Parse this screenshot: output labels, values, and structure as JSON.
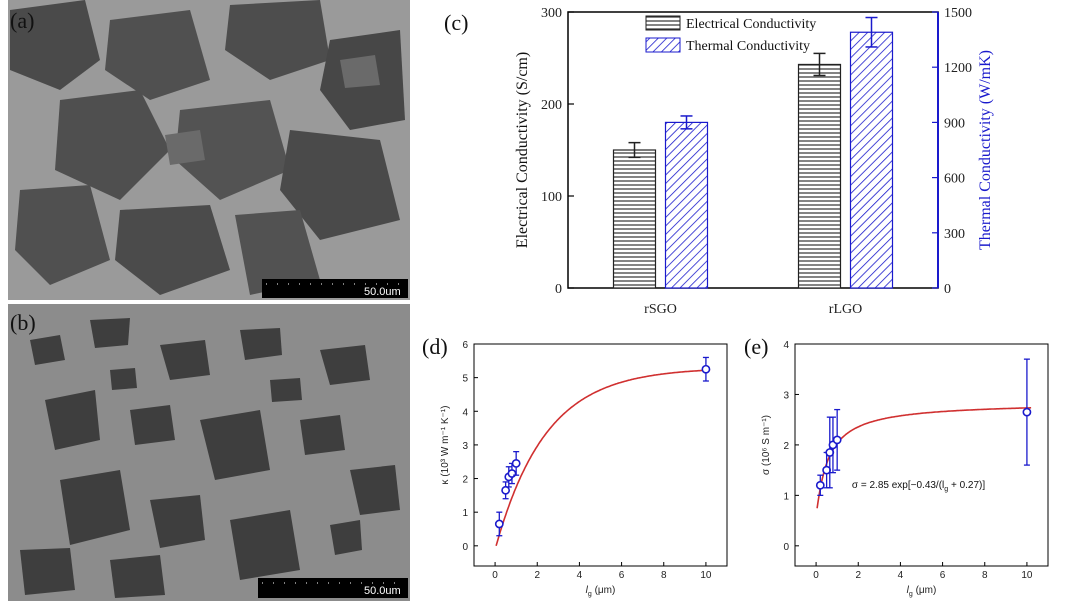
{
  "panels": {
    "a": {
      "label": "(a)",
      "scale_bar": "50.0um"
    },
    "b": {
      "label": "(b)",
      "scale_bar": "50.0um"
    },
    "c": {
      "label": "(c)"
    },
    "d": {
      "label": "(d)"
    },
    "e": {
      "label": "(e)"
    }
  },
  "colors": {
    "electrical": "#555555",
    "thermal": "#1a1acc",
    "fit": "#d03030",
    "points": "#1a1acc"
  },
  "chart_data": [
    {
      "id": "c",
      "type": "bar",
      "categories": [
        "rSGO",
        "rLGO"
      ],
      "series": [
        {
          "name": "Electrical Conductivity",
          "axis": "left",
          "values": [
            150,
            243
          ],
          "errors": [
            8,
            12
          ],
          "pattern": "horizontal-stripes"
        },
        {
          "name": "Thermal Conductivity",
          "axis": "right",
          "values": [
            900,
            1390
          ],
          "errors": [
            35,
            80
          ],
          "pattern": "diagonal-hatch"
        }
      ],
      "ylabel": "Electrical Conductivity (S/cm)",
      "ylabel_right": "Thermal Conductivity (W/mK)",
      "ylim": [
        0,
        300
      ],
      "ylim_right": [
        0,
        1500
      ],
      "yticks": [
        "0",
        "100",
        "200",
        "300"
      ],
      "yticks_right": [
        "0",
        "300",
        "600",
        "900",
        "1200",
        "1500"
      ],
      "legend": "top-center"
    },
    {
      "id": "d",
      "type": "scatter",
      "xlabel": "l",
      "xlabel_sub": "g",
      "xlabel_unit": "(μm)",
      "ylabel": "κ (10³ W m⁻¹ K⁻¹)",
      "xlim": [
        -1,
        11
      ],
      "ylim": [
        -0.6,
        6
      ],
      "xticks": [
        "0",
        "2",
        "4",
        "6",
        "8",
        "10"
      ],
      "yticks": [
        "0",
        "1",
        "2",
        "3",
        "4",
        "5",
        "6"
      ],
      "points": [
        {
          "x": 0.2,
          "y": 0.65,
          "err": 0.35
        },
        {
          "x": 0.5,
          "y": 1.65,
          "err": 0.25
        },
        {
          "x": 0.65,
          "y": 2.05,
          "err": 0.3
        },
        {
          "x": 0.8,
          "y": 2.15,
          "err": 0.3
        },
        {
          "x": 1.0,
          "y": 2.45,
          "err": 0.35
        },
        {
          "x": 10.0,
          "y": 5.25,
          "err": 0.35
        }
      ],
      "fit": {
        "model": "saturating",
        "a": 5.3,
        "k": 0.42,
        "x0": 0.05
      }
    },
    {
      "id": "e",
      "type": "scatter",
      "xlabel": "l",
      "xlabel_sub": "g",
      "xlabel_unit": "(μm)",
      "ylabel": "σ (10⁶ S m⁻¹)",
      "xlim": [
        -1,
        11
      ],
      "ylim": [
        -0.4,
        4
      ],
      "xticks": [
        "0",
        "2",
        "4",
        "6",
        "8",
        "10"
      ],
      "yticks": [
        "0",
        "1",
        "2",
        "3",
        "4"
      ],
      "points": [
        {
          "x": 0.2,
          "y": 1.2,
          "err": 0.2
        },
        {
          "x": 0.5,
          "y": 1.5,
          "err": 0.35
        },
        {
          "x": 0.65,
          "y": 1.85,
          "err": 0.7
        },
        {
          "x": 0.8,
          "y": 2.0,
          "err": 0.55
        },
        {
          "x": 1.0,
          "y": 2.1,
          "err": 0.6
        },
        {
          "x": 10.0,
          "y": 2.65,
          "err": 1.05
        }
      ],
      "annotation": "σ = 2.85 exp[−0.43/(l",
      "annotation_sub": "g",
      "annotation_tail": " + 0.27)]",
      "fit": {
        "model": "exp",
        "a": 2.85,
        "b": 0.43,
        "c": 0.27
      }
    }
  ]
}
